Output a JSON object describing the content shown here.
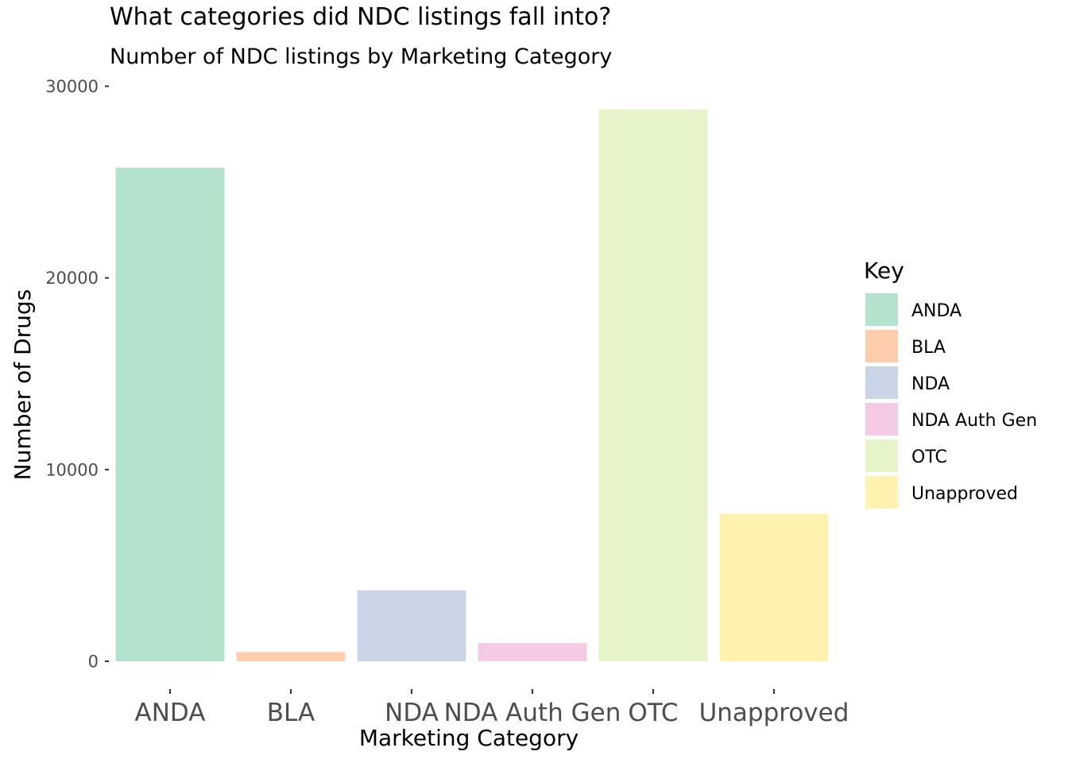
{
  "chart_data": {
    "type": "bar",
    "title": "What categories did NDC listings fall into?",
    "subtitle": "Number of NDC listings by Marketing Category",
    "xlabel": "Marketing Category",
    "ylabel": "Number of Drugs",
    "categories": [
      "ANDA",
      "BLA",
      "NDA",
      "NDA Auth Gen",
      "OTC",
      "Unapproved"
    ],
    "values": [
      25750,
      480,
      3700,
      950,
      28800,
      7700
    ],
    "colors": [
      "#b3e2cd",
      "#fdcdac",
      "#cbd5e8",
      "#f4cae4",
      "#e6f5c9",
      "#fff2ae"
    ],
    "ylim": [
      0,
      30000
    ],
    "yticks": [
      0,
      10000,
      20000,
      30000
    ],
    "ytick_labels": [
      "0",
      "10000",
      "20000",
      "30000"
    ],
    "grid": false,
    "legend": {
      "title": "Key",
      "placement": "right",
      "entries": [
        "ANDA",
        "BLA",
        "NDA",
        "NDA Auth Gen",
        "OTC",
        "Unapproved"
      ]
    }
  }
}
